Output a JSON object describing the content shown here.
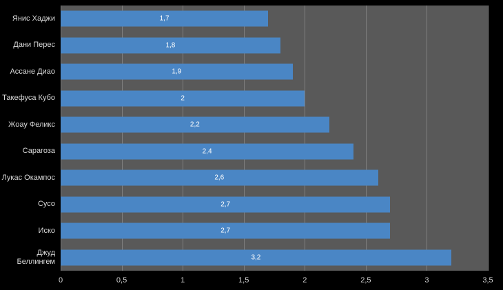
{
  "chart_data": {
    "type": "bar",
    "orientation": "horizontal",
    "title": "",
    "xlabel": "",
    "ylabel": "",
    "categories": [
      "Янис Хаджи",
      "Дани Перес",
      "Ассане Диао",
      "Такефуса Кубо",
      "Жоау Феликс",
      "Сарагоза",
      "Лукас Окампос",
      "Сусо",
      "Иско",
      "Джуд Беллингем"
    ],
    "values": [
      1.7,
      1.8,
      1.9,
      2,
      2.2,
      2.4,
      2.6,
      2.7,
      2.7,
      3.2
    ],
    "value_labels": [
      "1,7",
      "1,8",
      "1,9",
      "2",
      "2,2",
      "2,4",
      "2,6",
      "2,7",
      "2,7",
      "3,2"
    ],
    "x_ticks": [
      "0",
      "0,5",
      "1",
      "1,5",
      "2",
      "2,5",
      "3",
      "3,5"
    ],
    "xlim": [
      0,
      3.5
    ],
    "grid": true,
    "legend": "none",
    "colors": {
      "background": "#000000",
      "plot_background": "#595959",
      "bar": "#4a86c5",
      "gridline": "#7f7f7f",
      "category_text": "#d9d9d9",
      "tick_text": "#c9c9c9",
      "value_text": "#ffffff"
    }
  }
}
